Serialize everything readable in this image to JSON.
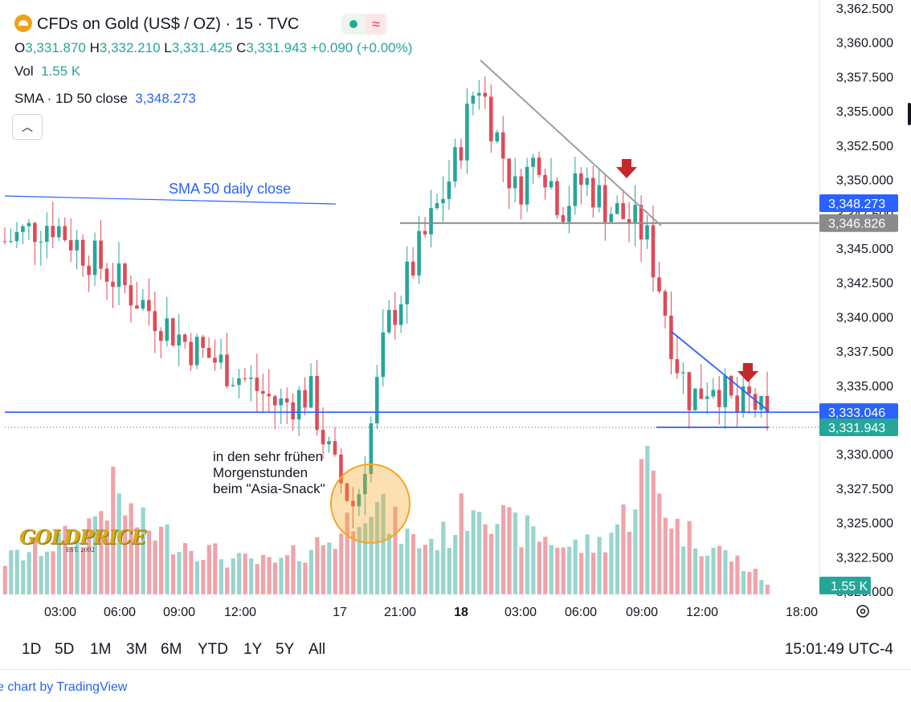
{
  "header": {
    "title": "CFDs on Gold (US$ / OZ) · 15 · TVC",
    "ohlc": {
      "o_label": "O",
      "o": "3,331.870",
      "h_label": "H",
      "h": "3,332.210",
      "l_label": "L",
      "l": "3,331.425",
      "c_label": "C",
      "c": "3,331.943",
      "change": "+0.090 (+0.00%)"
    },
    "vol_label": "Vol",
    "vol_value": "1.55 K",
    "sma_label": "SMA · 1D 50 close",
    "sma_value": "3,348.273",
    "collapse_icon": "chevron-up-icon",
    "badge_icons": [
      "market-open-dot-icon",
      "wave-icon"
    ]
  },
  "timeframes": [
    "1D",
    "5D",
    "1M",
    "3M",
    "6M",
    "YTD",
    "1Y",
    "5Y",
    "All"
  ],
  "clock": "15:01:49 UTC-4",
  "footer": "e chart by TradingView",
  "settings_icon": "gear-icon",
  "colors": {
    "up": "#26a69a",
    "down": "#e04a57",
    "vol_up": "#98d5cd",
    "vol_down": "#f0a3a9",
    "blue": "#2962ff",
    "gray": "#9e9e9e",
    "arrow": "#c62828",
    "circle": "#f5a623"
  },
  "chart_data": {
    "type": "candlestick",
    "symbol": "CFDs on Gold (US$ / OZ)",
    "interval": "15",
    "x_ticks": [
      "03:00",
      "06:00",
      "09:00",
      "12:00",
      "17",
      "21:00",
      "18",
      "03:00",
      "06:00",
      "09:00",
      "12:00",
      "18:00"
    ],
    "y_ticks": [
      "3,362.500",
      "3,360.000",
      "3,357.500",
      "3,355.000",
      "3,352.500",
      "3,350.000",
      "3,347.500",
      "3,345.000",
      "3,342.500",
      "3,340.000",
      "3,337.500",
      "3,335.000",
      "3,332.500",
      "3,330.000",
      "3,327.500",
      "3,325.000",
      "3,322.500",
      "3,320.000"
    ],
    "ylim": [
      3320,
      3363
    ],
    "price_labels": [
      {
        "value": "3,348.273",
        "kind": "sma",
        "color": "#2962ff"
      },
      {
        "value": "3,346.826",
        "kind": "resistance",
        "color": "#8a8a8a"
      },
      {
        "value": "3,333.046",
        "kind": "support",
        "color": "#2962ff"
      },
      {
        "value": "3,331.943",
        "kind": "last",
        "color": "#26a69a"
      },
      {
        "value": "1.55 K",
        "kind": "volume",
        "color": "#26a69a"
      }
    ],
    "levels": {
      "sma": 3348.273,
      "resistance": 3346.826,
      "support": 3333.046,
      "last": 3331.943
    },
    "price_path": [
      [
        0,
        3345.5
      ],
      [
        6,
        3347
      ],
      [
        12,
        3344
      ],
      [
        18,
        3341
      ],
      [
        24,
        3338
      ],
      [
        30,
        3336
      ],
      [
        36,
        3333.5
      ],
      [
        40,
        3334.5
      ],
      [
        43,
        3329
      ],
      [
        46,
        3326
      ],
      [
        48,
        3332
      ],
      [
        50,
        3339
      ],
      [
        53,
        3343
      ],
      [
        56,
        3347
      ],
      [
        59,
        3351
      ],
      [
        62,
        3357.5
      ],
      [
        64,
        3354
      ],
      [
        67,
        3349
      ],
      [
        70,
        3352
      ],
      [
        73,
        3348
      ],
      [
        76,
        3350
      ],
      [
        79,
        3348
      ],
      [
        82,
        3347
      ],
      [
        84,
        3346
      ],
      [
        86,
        3342
      ],
      [
        88,
        3337
      ],
      [
        90,
        3334
      ],
      [
        93,
        3335.5
      ],
      [
        96,
        3333
      ],
      [
        98,
        3334
      ],
      [
        100,
        3332
      ]
    ],
    "volume_profile": [
      [
        0,
        0.2
      ],
      [
        6,
        0.3
      ],
      [
        10,
        0.35
      ],
      [
        14,
        0.6
      ],
      [
        18,
        0.4
      ],
      [
        24,
        0.3
      ],
      [
        30,
        0.2
      ],
      [
        36,
        0.18
      ],
      [
        40,
        0.28
      ],
      [
        44,
        0.35
      ],
      [
        47,
        0.6
      ],
      [
        50,
        0.45
      ],
      [
        54,
        0.3
      ],
      [
        58,
        0.35
      ],
      [
        62,
        0.6
      ],
      [
        66,
        0.4
      ],
      [
        70,
        0.35
      ],
      [
        74,
        0.28
      ],
      [
        78,
        0.3
      ],
      [
        82,
        0.5
      ],
      [
        84,
        0.8
      ],
      [
        86,
        0.6
      ],
      [
        88,
        0.4
      ],
      [
        92,
        0.3
      ],
      [
        96,
        0.2
      ],
      [
        100,
        0.07
      ]
    ],
    "annotations": [
      {
        "text": "SMA 50 daily close",
        "kind": "line-label"
      },
      {
        "text": "in den sehr frühen Morgenstunden beim \"Asia-Snack\"",
        "kind": "note"
      }
    ],
    "watermark": "GOLDPRICE",
    "watermark_sub": "EST. 2002"
  }
}
